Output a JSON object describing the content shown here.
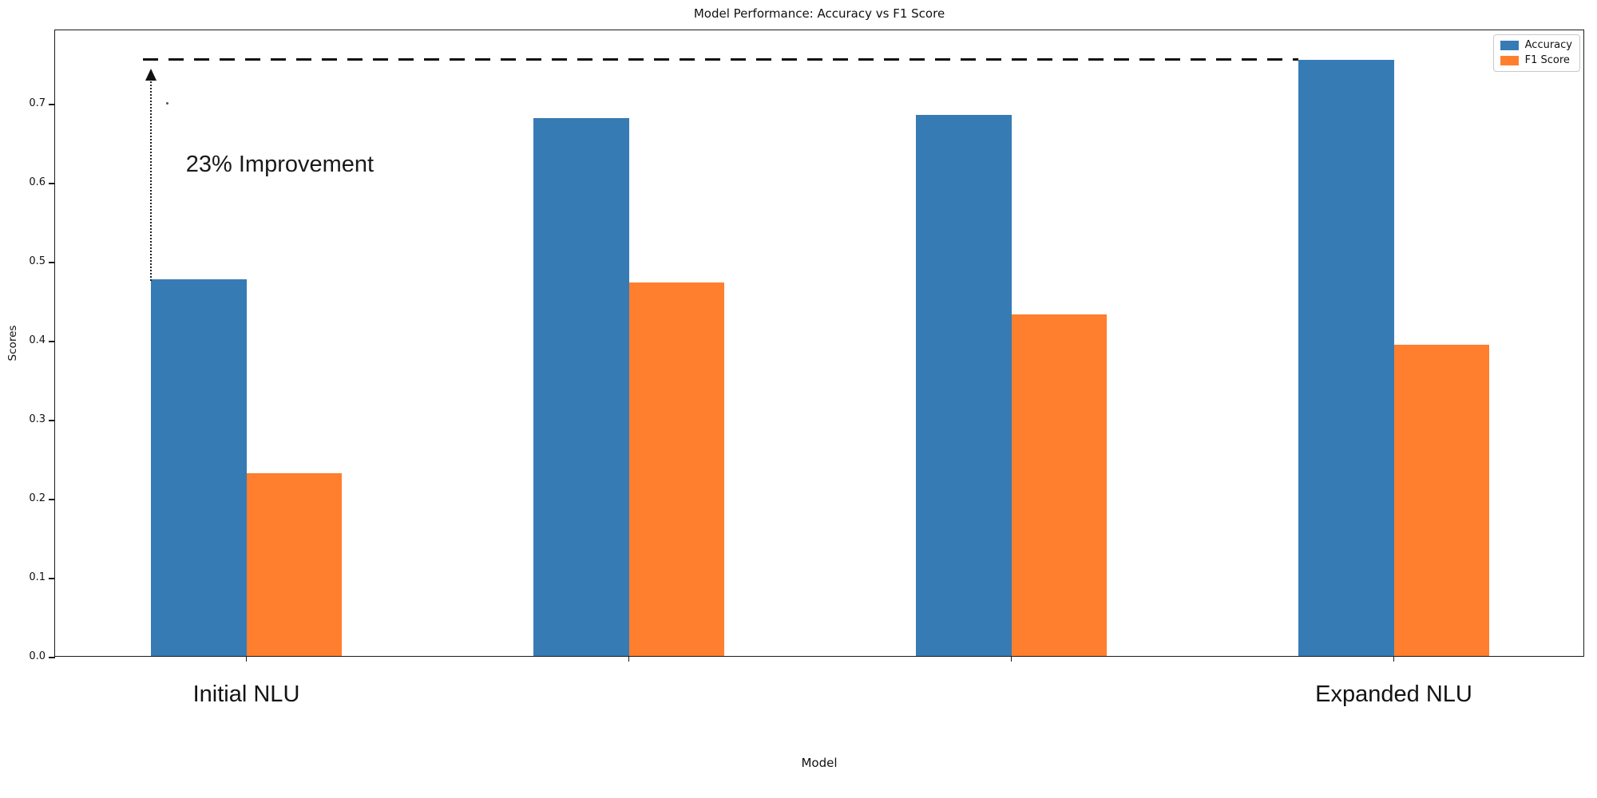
{
  "chart_data": {
    "type": "bar",
    "title": "Model Performance: Accuracy vs F1 Score",
    "xlabel": "Model",
    "ylabel": "Scores",
    "categories": [
      "Initial NLU",
      "",
      "",
      "Expanded NLU"
    ],
    "series": [
      {
        "name": "Accuracy",
        "color": "#377bb5",
        "values": [
          0.477,
          0.681,
          0.685,
          0.755
        ]
      },
      {
        "name": "F1 Score",
        "color": "#ff7f2e",
        "values": [
          0.231,
          0.473,
          0.432,
          0.394
        ]
      }
    ],
    "yticks": [
      "0.0",
      "0.1",
      "0.2",
      "0.3",
      "0.4",
      "0.5",
      "0.6",
      "0.7"
    ],
    "ylim": [
      0,
      0.794
    ],
    "xlim": [
      -0.5,
      3.5
    ],
    "bar_width": 0.25,
    "grid": false,
    "legend_position": "upper right",
    "annotations": {
      "improvement_label": "23% Improvement",
      "dashed_line": {
        "y": 0.757,
        "x_from": -0.27,
        "x_to": 2.75
      },
      "arrow": {
        "x": -0.25,
        "y_from": 0.477,
        "y_to": 0.742
      },
      "dot": {
        "x": -0.21,
        "y": 0.703
      }
    }
  }
}
